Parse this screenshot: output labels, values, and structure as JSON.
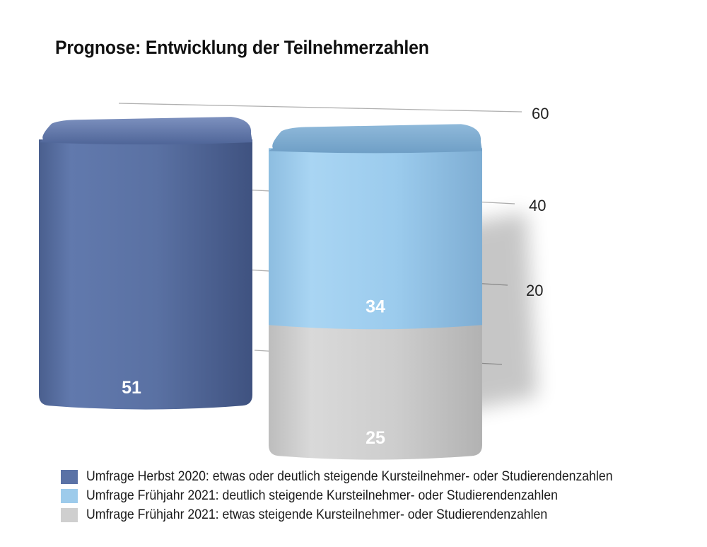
{
  "title": "Prognose: Entwicklung der Teilnehmerzahlen",
  "chart_data": {
    "type": "bar",
    "stacked": true,
    "title": "Prognose: Entwicklung der Teilnehmerzahlen",
    "ylim": [
      0,
      60
    ],
    "yticks": [
      20,
      40,
      60
    ],
    "grid": true,
    "legend_position": "bottom",
    "bars": [
      {
        "segments": [
          {
            "series": 0,
            "value": 51,
            "label": "51"
          }
        ]
      },
      {
        "segments": [
          {
            "series": 2,
            "value": 25,
            "label": "25"
          },
          {
            "series": 1,
            "value": 34,
            "label": "34"
          }
        ]
      }
    ],
    "series": [
      {
        "name": "Umfrage Herbst 2020: etwas oder deutlich steigende Kursteilnehmer- oder Studierendenzahlen",
        "color": "#5a72a6"
      },
      {
        "name": "Umfrage Frühjahr 2021: deutlich steigende Kursteilnehmer- oder Studierendenzahlen",
        "color": "#9dcbeb"
      },
      {
        "name": "Umfrage Frühjahr 2021: etwas steigende Kursteilnehmer- oder Studierendenzahlen",
        "color": "#cfcfcf"
      }
    ]
  }
}
